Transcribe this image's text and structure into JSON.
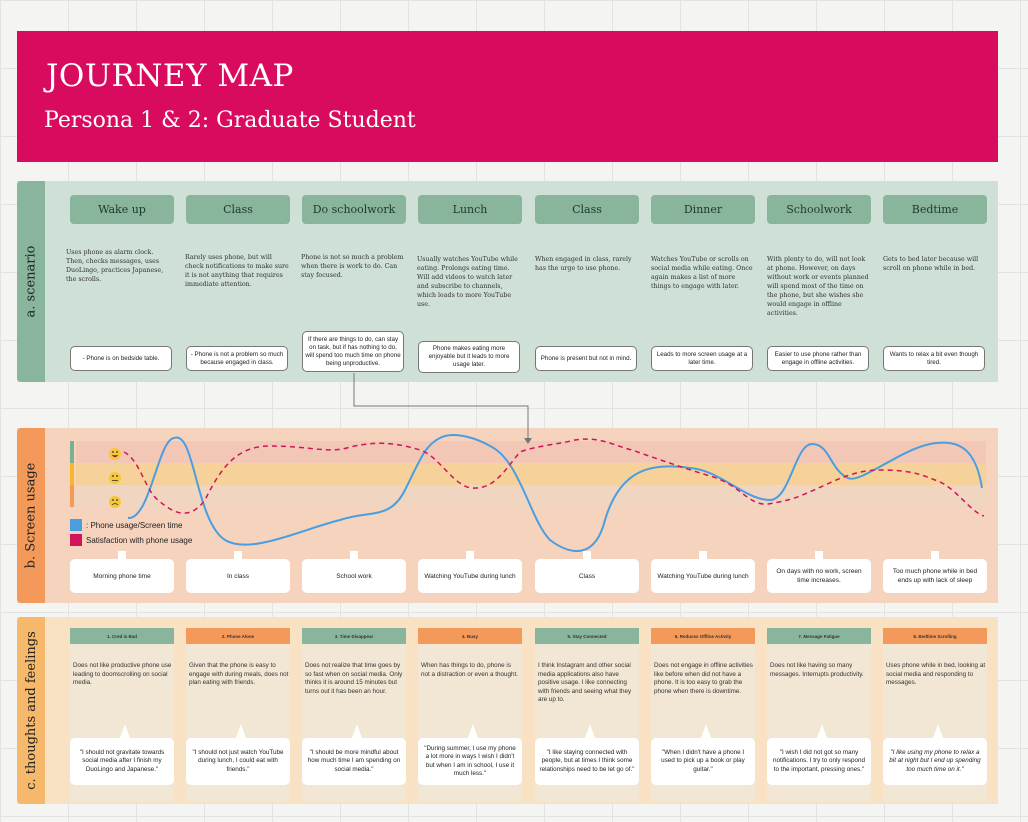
{
  "header": {
    "title": "JOURNEY MAP",
    "subtitle": "Persona 1 & 2: Graduate Student"
  },
  "sections": {
    "a": "a. scenario",
    "b": "b. Screen usage",
    "c": "c. thoughts and feelings"
  },
  "colors": {
    "header": "#d90b5e",
    "scenario": "#cfe0d6",
    "stage": "#88b59c",
    "usage_bg": "#f6d3bd",
    "thoughts_bg": "#f9e2c3",
    "phone_line": "#4a9ee0",
    "satisfaction_line": "#d3135a"
  },
  "stages": [
    "Wake up",
    "Class",
    "Do schoolwork",
    "Lunch",
    "Class",
    "Dinner",
    "Schoolwork",
    "Bedtime"
  ],
  "scenarios": [
    "Uses phone as alarm clock. Then, checks messages, uses DuoLingo, practices Japanese, the scrolls.",
    "Rarely uses phone, but will check notifications to make sure it is not anything that requires immediate attention.",
    "Phone is not so much a problem when there is work to do. Can stay focused.",
    "Usually watches YouTube while eating. Prolongs eating time. Will add videos to watch later and subscribe to channels, which leads to more YouTube use.",
    "When engaged in class, rarely has the urge to use phone.",
    "Watches YouTube or scrolls on social media while eating. Once again makes a list of more things to engage with later.",
    "With plenty to do, will not look at phone. However, on days without work or events planned will spend most of the time on the phone, but she wishes she would engage in offline activities.",
    "Gets to bed later because will scroll on phone while in bed."
  ],
  "scenario_notes": [
    "- Phone is on bedside table.",
    "- Phone is not a problem so much because engaged in class.",
    "If there are things to do, can stay on task, but if has nothing to do, will spend too much time on phone being unproductive.",
    "Phone makes eating more enjoyable but it leads to more usage later.",
    "Phone is present but not in mind.",
    "Leads to more screen usage at a later time.",
    "Easier to use phone rather than engage in offline activities.",
    "Wants to relax a bit even though tired."
  ],
  "legend": {
    "phone": ": Phone usage/Screen time",
    "satisfaction": "Satisfaction with phone usage"
  },
  "usage_labels": [
    "Morning phone time",
    "In class",
    "School work",
    "Watching YouTube during lunch",
    "Class",
    "Watching YouTube during lunch",
    "On days with no work, screen time increases.",
    "Too much phone while in bed ends up with lack of sleep"
  ],
  "thought_titles": [
    "1. Cred is Bad",
    "2. Phone Alone",
    "3. Time Disappear",
    "4. Busy",
    "5. Stay Connected",
    "6. Reduces Offline Activity",
    "7. Message Fatigue",
    "8. Bedtime Scrolling"
  ],
  "thought_desc": [
    "Does not like productive phone use leading to doomscrolling on social media.",
    "Given that the phone is easy to engage with during meals, does not plan eating with friends.",
    "Does not realize that time goes by so fast when on social media. Only thinks it is around 15 minutes but turns out it has been an hour.",
    "When has things to do, phone is not a distraction or even a thought.",
    "I think Instagram and other social media applications also have positive usage. I like connecting with friends and seeing what they are up to.",
    "Does not engage in offline activities like before when did not have a phone. It is too easy to grab the phone when there is downtime.",
    "Does not like having so many messages. Interrupts productivity.",
    "Uses phone while in bed, looking at social media and responding to messages."
  ],
  "quotes": [
    "\"I should not gravitate towards social media after I finish my DuoLingo and Japanese.\"",
    "\"I should not just watch YouTube during lunch, I could eat with friends.\"",
    "\"I should be more mindful about how much time I am spending on social media.\"",
    "\"During summer, I use my phone a lot more in ways I wish I didn't but when I am in school, I use it much less.\"",
    "\"I like staying connected with people, but at times I think some relationships need to be let go of.\"",
    "\"When I didn't have a phone I used to pick up a book or play guitar.\"",
    "\"I wish I did not got so many notifications. I try to only respond to the important, pressing ones.\"",
    "\"I like using my phone to relax a bit at night but I end up spending too much time on it.\""
  ],
  "icons": [
    "happy-face-icon",
    "neutral-face-icon",
    "sad-face-icon"
  ]
}
